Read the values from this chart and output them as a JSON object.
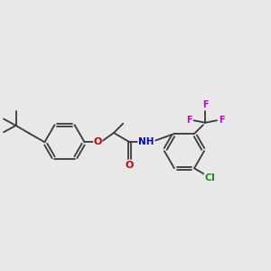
{
  "background_color": "#e8e8e8",
  "bond_color": "#3a3a3a",
  "oxygen_color": "#cc0000",
  "nitrogen_color": "#0000cc",
  "fluorine_color": "#cc00cc",
  "chlorine_color": "#228b22",
  "figsize": [
    3.0,
    3.0
  ],
  "dpi": 100,
  "xlim": [
    0,
    12
  ],
  "ylim": [
    1,
    8
  ]
}
